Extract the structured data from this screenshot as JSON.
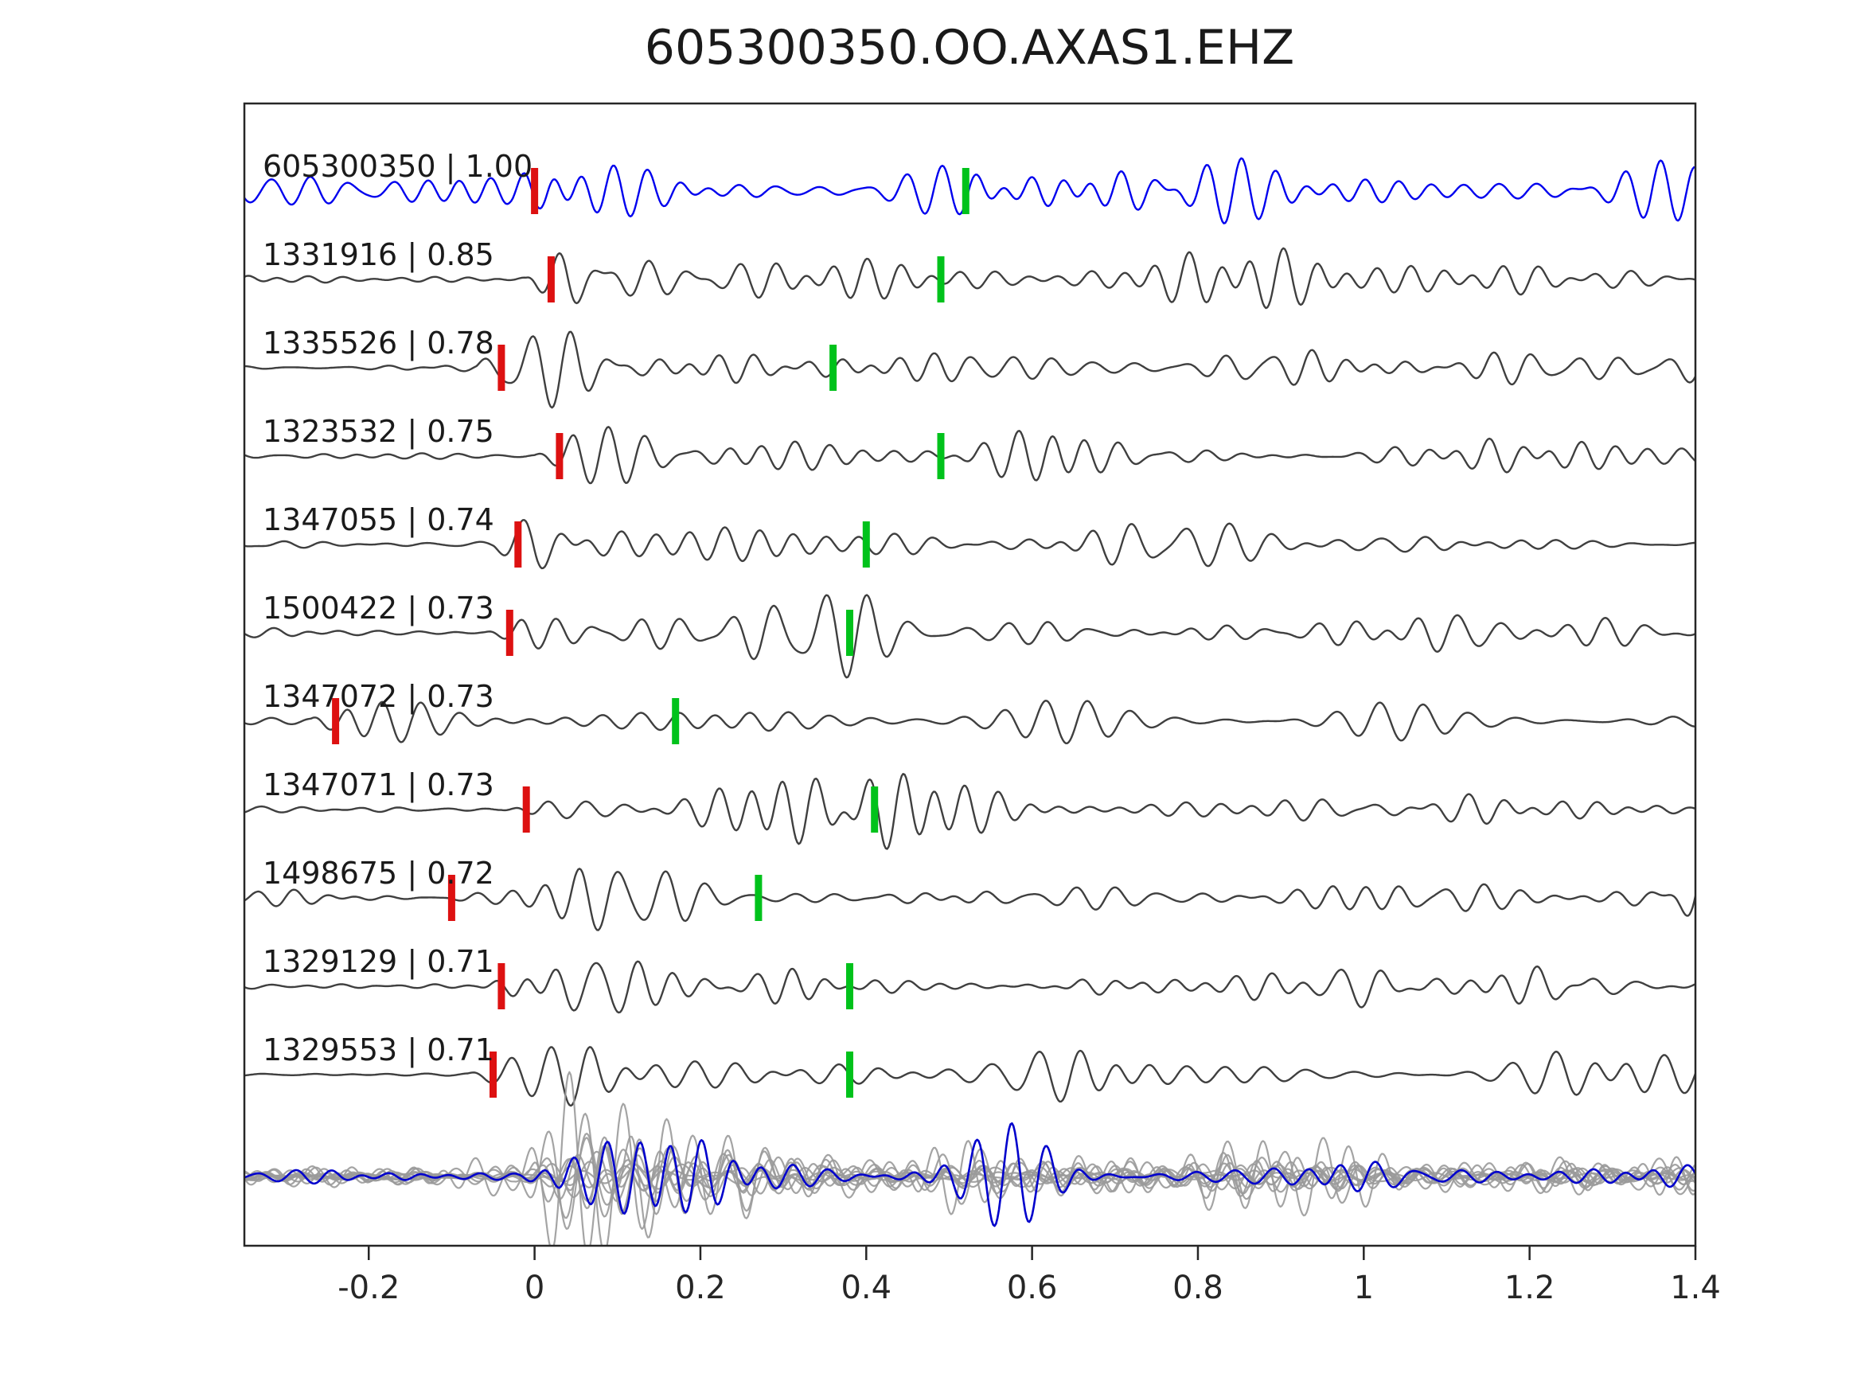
{
  "chart_data": {
    "type": "line",
    "title": "605300350.OO.AXAS1.EHZ",
    "xlabel": "",
    "ylabel": "",
    "xlim": [
      -0.35,
      1.4
    ],
    "grid": false,
    "legend": "none",
    "x_ticks": [
      -0.2,
      0,
      0.2,
      0.4,
      0.6,
      0.8,
      1,
      1.2,
      1.4
    ],
    "x_tick_labels": [
      "-0.2",
      "0",
      "0.2",
      "0.4",
      "0.6",
      "0.8",
      "1",
      "1.2",
      "1.4"
    ],
    "colors": {
      "template_trace": "#0000ee",
      "detection_trace": "#3f3f3f",
      "stack_overlay": "#9a9a9a",
      "stack_template": "#0000cc",
      "red_pick": "#dd1111",
      "green_pick": "#00c21b",
      "axis": "#262626"
    },
    "traces": [
      {
        "label": "605300350 | 1.00",
        "event_id": "605300350",
        "correlation": 1.0,
        "is_template": true,
        "red_pick": 0.0,
        "green_pick": 0.52
      },
      {
        "label": "1331916 | 0.85",
        "event_id": "1331916",
        "correlation": 0.85,
        "is_template": false,
        "red_pick": 0.02,
        "green_pick": 0.49
      },
      {
        "label": "1335526 | 0.78",
        "event_id": "1335526",
        "correlation": 0.78,
        "is_template": false,
        "red_pick": -0.04,
        "green_pick": 0.36
      },
      {
        "label": "1323532 | 0.75",
        "event_id": "1323532",
        "correlation": 0.75,
        "is_template": false,
        "red_pick": 0.03,
        "green_pick": 0.49
      },
      {
        "label": "1347055 | 0.74",
        "event_id": "1347055",
        "correlation": 0.74,
        "is_template": false,
        "red_pick": -0.02,
        "green_pick": 0.4
      },
      {
        "label": "1500422 | 0.73",
        "event_id": "1500422",
        "correlation": 0.73,
        "is_template": false,
        "red_pick": -0.03,
        "green_pick": 0.38
      },
      {
        "label": "1347072 | 0.73",
        "event_id": "1347072",
        "correlation": 0.73,
        "is_template": false,
        "red_pick": -0.24,
        "green_pick": 0.17
      },
      {
        "label": "1347071 | 0.73",
        "event_id": "1347071",
        "correlation": 0.73,
        "is_template": false,
        "red_pick": -0.01,
        "green_pick": 0.41
      },
      {
        "label": "1498675 | 0.72",
        "event_id": "1498675",
        "correlation": 0.72,
        "is_template": false,
        "red_pick": -0.1,
        "green_pick": 0.27
      },
      {
        "label": "1329129 | 0.71",
        "event_id": "1329129",
        "correlation": 0.71,
        "is_template": false,
        "red_pick": -0.04,
        "green_pick": 0.38
      },
      {
        "label": "1329553 | 0.71",
        "event_id": "1329553",
        "correlation": 0.71,
        "is_template": false,
        "red_pick": -0.05,
        "green_pick": 0.38
      }
    ],
    "stack_row": {
      "overlay_count": 11,
      "has_template_overlay": true
    }
  }
}
